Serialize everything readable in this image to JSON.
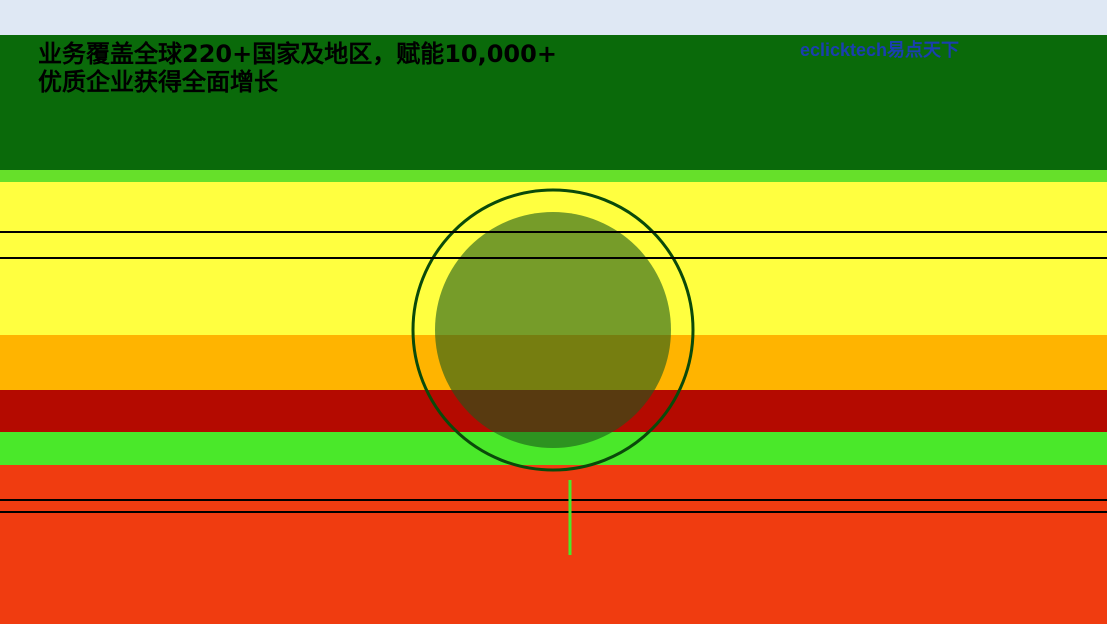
{
  "header": {
    "title_line1": "业务覆盖全球220+国家及地区，赋能10,000+",
    "title_line2": "优质企业获得全面增长",
    "logo": "eclicktech易点天下"
  }
}
